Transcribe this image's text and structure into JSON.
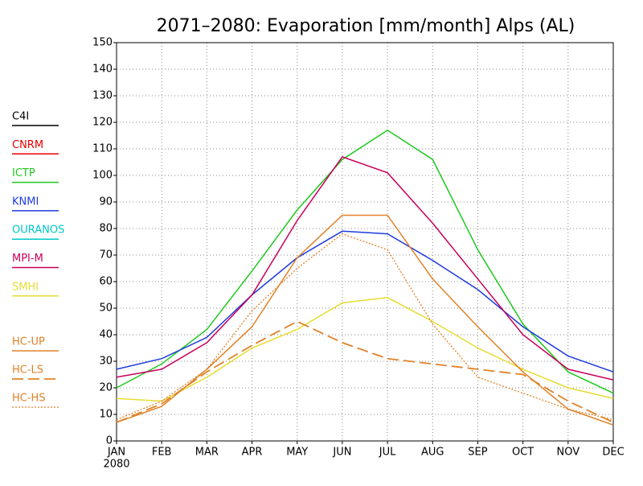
{
  "chart_data": {
    "type": "line",
    "title": "2071–2080: Evaporation [mm/month] Alps (AL)",
    "x_sublabel": "2080",
    "categories": [
      "JAN",
      "FEB",
      "MAR",
      "APR",
      "MAY",
      "JUN",
      "JUL",
      "AUG",
      "SEP",
      "OCT",
      "NOV",
      "DEC"
    ],
    "ylim": [
      0,
      150
    ],
    "yticks": [
      0,
      10,
      20,
      30,
      40,
      50,
      60,
      70,
      80,
      90,
      100,
      110,
      120,
      130,
      140,
      150
    ],
    "grid": true,
    "series": [
      {
        "name": "C4I",
        "color": "#000000",
        "style": "solid",
        "values": [
          null,
          null,
          null,
          null,
          null,
          null,
          null,
          null,
          null,
          null,
          null,
          null
        ]
      },
      {
        "name": "CNRM",
        "color": "#e60000",
        "style": "solid",
        "values": [
          null,
          null,
          null,
          null,
          null,
          null,
          null,
          null,
          null,
          null,
          null,
          null
        ]
      },
      {
        "name": "ICTP",
        "color": "#1ec81e",
        "style": "solid",
        "values": [
          20,
          29,
          42,
          64,
          87,
          106,
          117,
          106,
          72,
          44,
          26,
          18
        ]
      },
      {
        "name": "KNMI",
        "color": "#1e3cdc",
        "style": "solid",
        "values": [
          27,
          31,
          39,
          55,
          69,
          79,
          78,
          68,
          57,
          43,
          32,
          26
        ]
      },
      {
        "name": "OURANOS",
        "color": "#00c8c8",
        "style": "solid",
        "values": [
          null,
          null,
          null,
          null,
          null,
          null,
          null,
          null,
          null,
          null,
          null,
          null
        ]
      },
      {
        "name": "MPI-M",
        "color": "#c8005a",
        "style": "solid",
        "values": [
          24,
          27,
          37,
          55,
          83,
          107,
          101,
          82,
          61,
          40,
          27,
          23
        ]
      },
      {
        "name": "SMHI",
        "color": "#e6dc32",
        "style": "solid",
        "values": [
          16,
          15,
          24,
          35,
          42,
          52,
          54,
          45,
          35,
          27,
          20,
          16
        ]
      },
      {
        "name": "HC-UP",
        "color": "#e08228",
        "style": "solid",
        "values": [
          7,
          13,
          27,
          43,
          69,
          85,
          85,
          61,
          43,
          26,
          12,
          6
        ]
      },
      {
        "name": "HC-LS",
        "color": "#e08228",
        "style": "dashed",
        "values": [
          7,
          14,
          26,
          36,
          45,
          37,
          31,
          29,
          27,
          25,
          15,
          7
        ]
      },
      {
        "name": "HC-HS",
        "color": "#e08228",
        "style": "dotted",
        "values": [
          8,
          15,
          27,
          49,
          65,
          78,
          72,
          44,
          24,
          18,
          12,
          8
        ]
      }
    ]
  }
}
